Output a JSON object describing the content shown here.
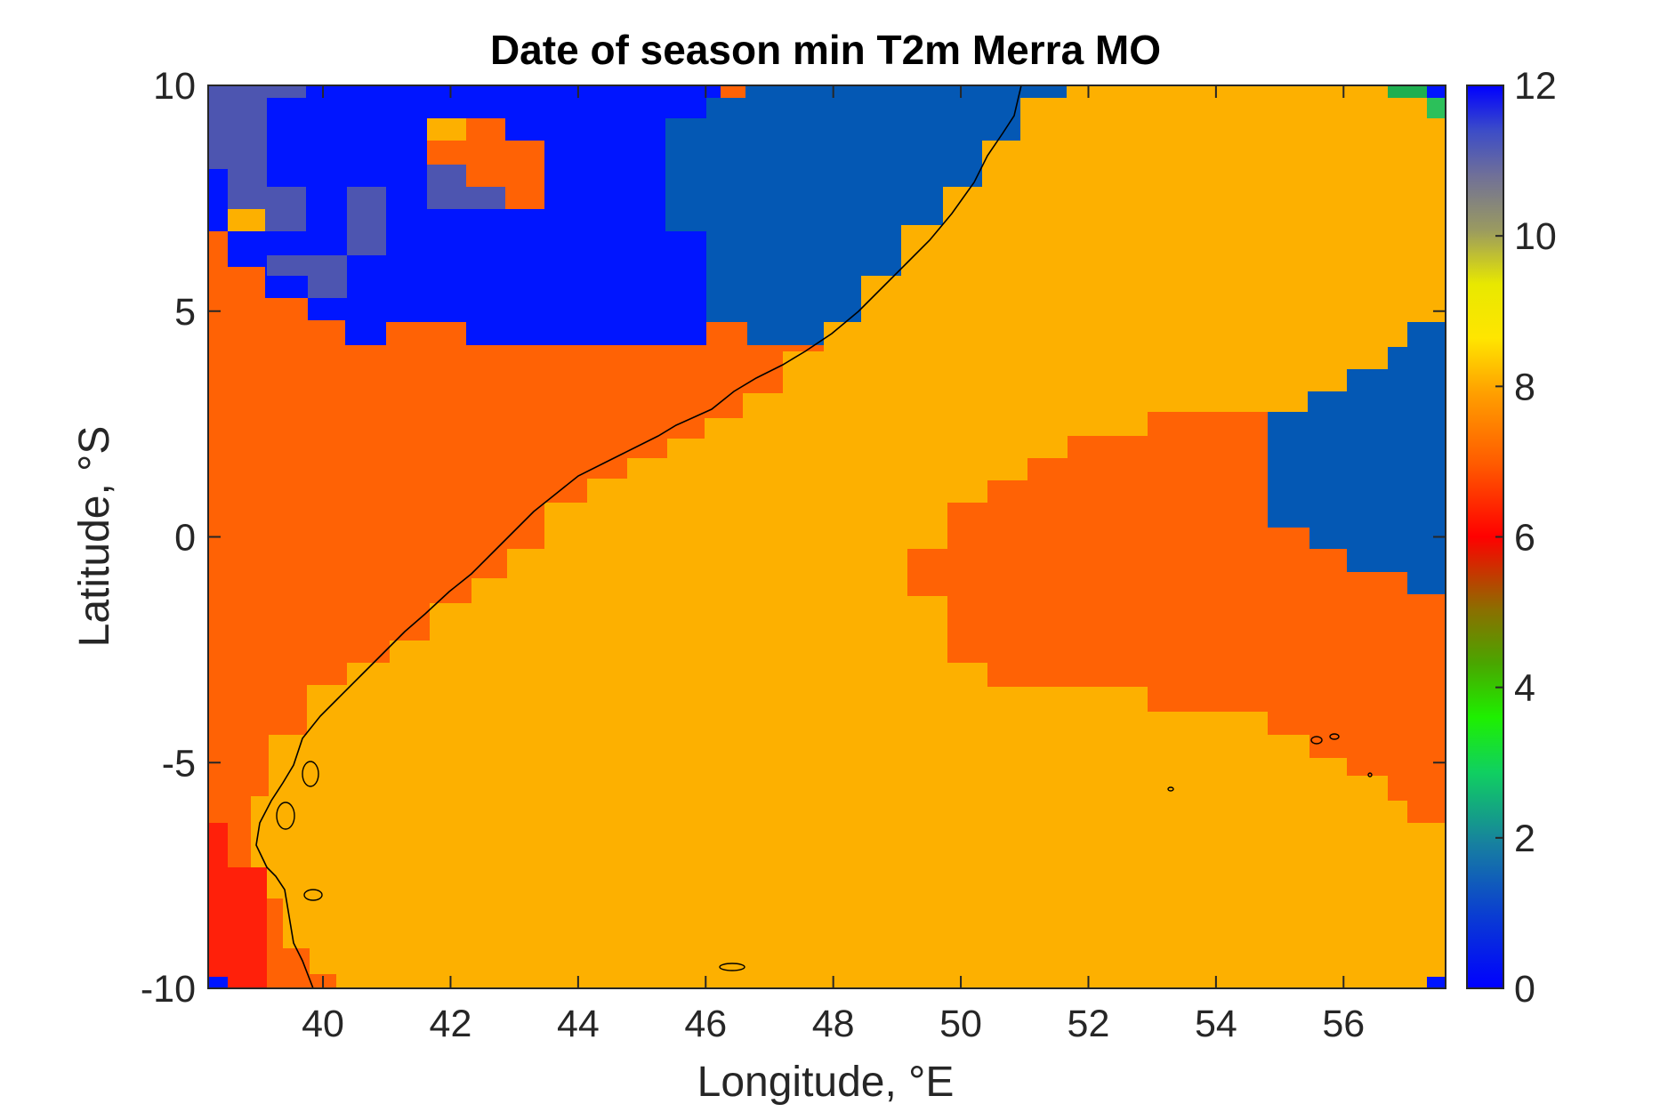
{
  "chart_data": {
    "type": "heatmap",
    "title": "Date of season min T2m Merra MO",
    "xlabel": "Longitude, °E",
    "ylabel": "Latitude, °S",
    "xlim": [
      38.2,
      57.6
    ],
    "ylim": [
      -10,
      10
    ],
    "xticks": [
      "40",
      "42",
      "44",
      "46",
      "48",
      "50",
      "52",
      "54",
      "56"
    ],
    "yticks": [
      "10",
      "5",
      "0",
      "-5",
      "-10"
    ],
    "colorbar": {
      "min": 0,
      "max": 12,
      "ticks": [
        "12",
        "10",
        "8",
        "6",
        "4",
        "2",
        "0"
      ],
      "colormap": "jet-like (blue-green-yellow-orange-red-purple-blue)"
    },
    "grid": false,
    "legend": "colorbar-right",
    "regions": [
      {
        "value": 8,
        "color": "#FDB000",
        "description": "ocean east of coastline"
      },
      {
        "value": 7,
        "color": "#FF6205",
        "description": "interior land and eastern ocean band"
      },
      {
        "value": 12,
        "color": "#0015FF",
        "description": "northern highlands"
      },
      {
        "value": 1,
        "color": "#0458B4",
        "description": "north-central and eastern ocean"
      },
      {
        "value": 11,
        "color": "#4D55B0",
        "description": "north-west patches"
      },
      {
        "value": 6,
        "color": "#FF200A",
        "description": "south-west corner"
      },
      {
        "value": 3,
        "color": "#1EAF50",
        "description": "far north-east corner"
      }
    ]
  },
  "colors": {
    "v8": "#FDB000",
    "v7": "#FF6205",
    "v12": "#0015FF",
    "v1": "#0458B4",
    "v11": "#4D55B0",
    "v6": "#FF200A",
    "v3": "#1EAF50",
    "v3b": "#2CC05A"
  }
}
